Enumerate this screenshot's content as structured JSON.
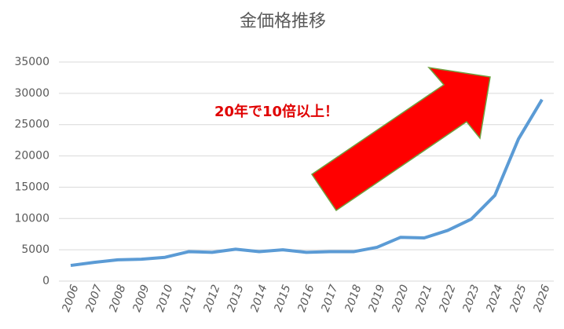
{
  "chart_data": {
    "type": "line",
    "title": "金価格推移",
    "categories": [
      "2006",
      "2007",
      "2008",
      "2009",
      "2010",
      "2011",
      "2012",
      "2013",
      "2014",
      "2015",
      "2016",
      "2017",
      "2018",
      "2019",
      "2020",
      "2021",
      "2022",
      "2023",
      "2024",
      "2025",
      "2026"
    ],
    "values": [
      2500,
      3000,
      3400,
      3500,
      3800,
      4700,
      4600,
      5100,
      4700,
      5000,
      4600,
      4700,
      4700,
      5400,
      7000,
      6900,
      8100,
      9900,
      13700,
      22700,
      29000
    ],
    "color": "#5b9bd5",
    "ylim": [
      0,
      35000
    ],
    "yticks": [
      0,
      5000,
      10000,
      15000,
      20000,
      25000,
      30000,
      35000
    ],
    "grid": true,
    "annotation": "20年で10倍以上！"
  }
}
